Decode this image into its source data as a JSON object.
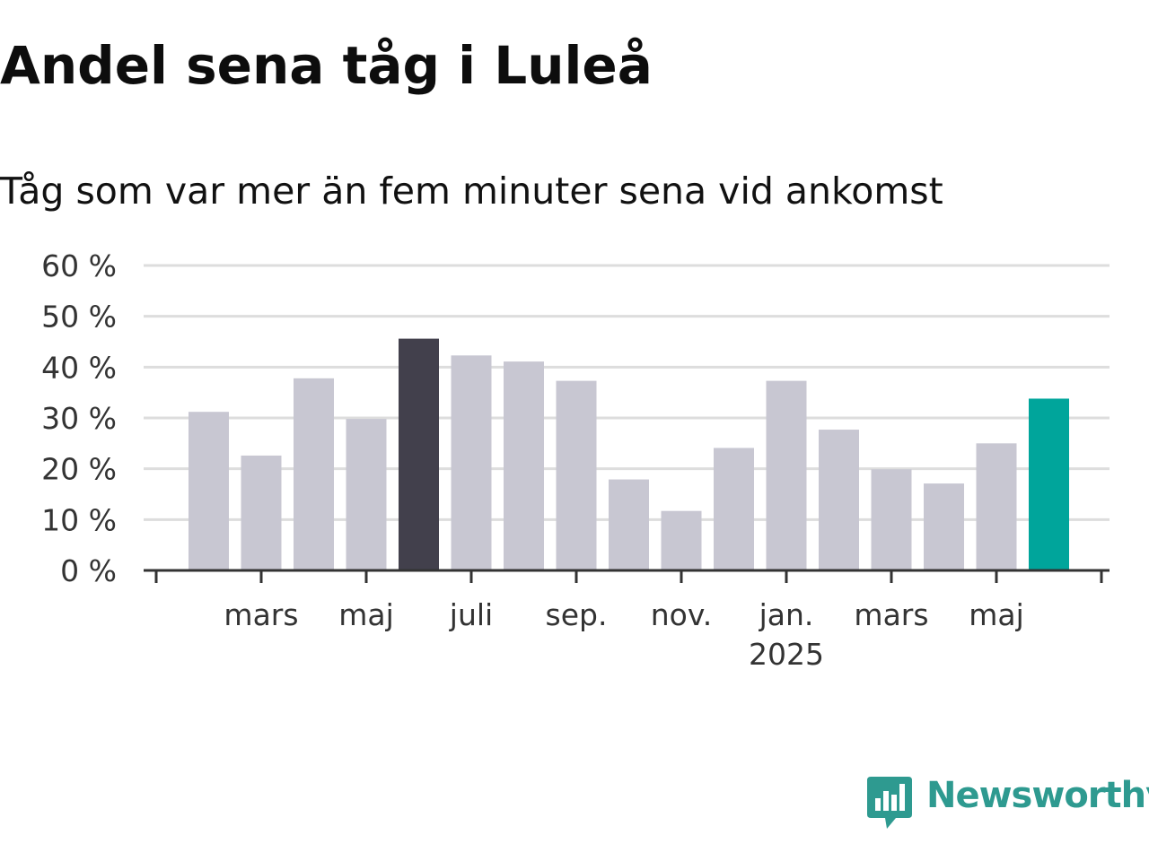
{
  "title": "Andel sena tåg i Luleå",
  "subtitle": "Tåg som var mer än fem minuter sena vid ankomst",
  "colors": {
    "bar_default": "#c8c7d2",
    "bar_highlight_dark": "#42404c",
    "bar_highlight_accent": "#00a59b",
    "grid": "#dddddd",
    "axis": "#333333",
    "brand": "#2e9a90"
  },
  "brand": {
    "name": "Newsworthy",
    "icon": "newsworthy-logo-icon"
  },
  "chart_data": {
    "type": "bar",
    "x": [
      "2024-02",
      "2024-03",
      "2024-04",
      "2024-05",
      "2024-06",
      "2024-07",
      "2024-08",
      "2024-09",
      "2024-10",
      "2024-11",
      "2024-12",
      "2025-01",
      "2025-02",
      "2025-03",
      "2025-04",
      "2025-05",
      "2025-06"
    ],
    "values": [
      31.2,
      22.6,
      37.8,
      29.8,
      45.6,
      42.3,
      41.1,
      37.3,
      17.9,
      11.7,
      24.1,
      37.3,
      27.7,
      19.9,
      17.1,
      25.0,
      33.8
    ],
    "highlight": {
      "2024-06": "dark",
      "2025-06": "accent"
    },
    "xlabel": "",
    "ylabel": "",
    "ylim": [
      0,
      60
    ],
    "yticks": [
      {
        "value": 0,
        "label": "0 %"
      },
      {
        "value": 10,
        "label": "10 %"
      },
      {
        "value": 20,
        "label": "20 %"
      },
      {
        "value": 30,
        "label": "30 %"
      },
      {
        "value": 40,
        "label": "40 %"
      },
      {
        "value": 50,
        "label": "50 %"
      },
      {
        "value": 60,
        "label": "60 %"
      }
    ],
    "xticks": [
      {
        "at": "2024-03",
        "label": "mars"
      },
      {
        "at": "2024-05",
        "label": "maj"
      },
      {
        "at": "2024-07",
        "label": "juli"
      },
      {
        "at": "2024-09",
        "label": "sep."
      },
      {
        "at": "2024-11",
        "label": "nov."
      },
      {
        "at": "2025-01",
        "label": "jan.",
        "sublabel": "2025"
      },
      {
        "at": "2025-03",
        "label": "mars"
      },
      {
        "at": "2025-05",
        "label": "maj"
      }
    ],
    "grid": true,
    "legend": "none"
  }
}
